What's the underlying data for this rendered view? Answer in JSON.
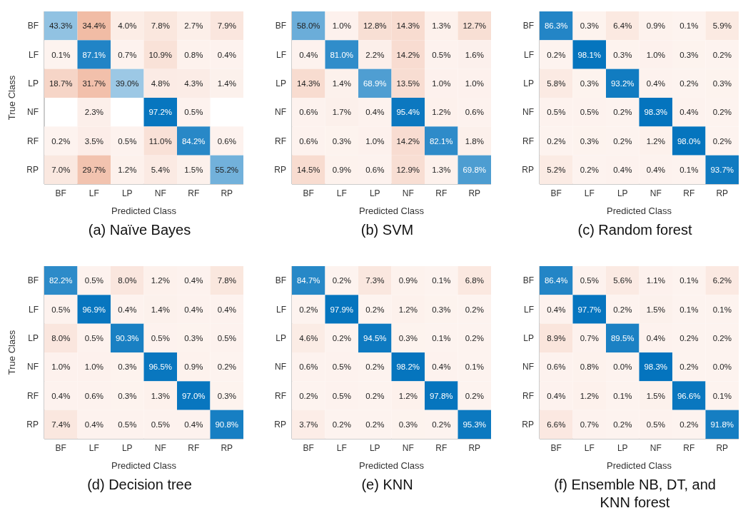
{
  "chart_data": [
    {
      "type": "heatmap",
      "title": "(a) Naïve Bayes",
      "xlabel": "Predicted Class",
      "ylabel": "True Class",
      "categories": [
        "BF",
        "LF",
        "LP",
        "NF",
        "RF",
        "RP"
      ],
      "y_categories": [
        "BF",
        "LF",
        "LP",
        "NF",
        "RF",
        "RP"
      ],
      "cells": [
        [
          43.3,
          34.4,
          4.0,
          7.8,
          2.7,
          7.9
        ],
        [
          0.1,
          87.1,
          0.7,
          10.9,
          0.8,
          0.4
        ],
        [
          18.7,
          31.7,
          39.0,
          4.8,
          4.3,
          1.4
        ],
        [
          null,
          2.3,
          null,
          97.2,
          0.5,
          null
        ],
        [
          0.2,
          3.5,
          0.5,
          11.0,
          84.2,
          0.6
        ],
        [
          7.0,
          29.7,
          1.2,
          5.4,
          1.5,
          55.2
        ]
      ],
      "cell_labels": [
        [
          "43.3%",
          "34.4%",
          "4.0%",
          "7.8%",
          "2.7%",
          "7.9%"
        ],
        [
          "0.1%",
          "87.1%",
          "0.7%",
          "10.9%",
          "0.8%",
          "0.4%"
        ],
        [
          "18.7%",
          "31.7%",
          "39.0%",
          "4.8%",
          "4.3%",
          "1.4%"
        ],
        [
          null,
          "2.3%",
          null,
          "97.2%",
          "0.5%",
          null
        ],
        [
          "0.2%",
          "3.5%",
          "0.5%",
          "11.0%",
          "84.2%",
          "0.6%"
        ],
        [
          "7.0%",
          "29.7%",
          "1.2%",
          "5.4%",
          "1.5%",
          "55.2%"
        ]
      ]
    },
    {
      "type": "heatmap",
      "title": "(b) SVM",
      "xlabel": "Predicted Class",
      "categories": [
        "BF",
        "LF",
        "LP",
        "NF",
        "RF",
        "RP"
      ],
      "y_categories": [
        "BF",
        "LF",
        "LP",
        "NF",
        "RF",
        "RP"
      ],
      "cells": [
        [
          58.0,
          1.0,
          12.8,
          14.3,
          1.3,
          12.7
        ],
        [
          0.4,
          81.0,
          2.2,
          14.2,
          0.5,
          1.6
        ],
        [
          14.3,
          1.4,
          68.9,
          13.5,
          1.0,
          1.0
        ],
        [
          0.6,
          1.7,
          0.4,
          95.4,
          1.2,
          0.6
        ],
        [
          0.6,
          0.3,
          1.0,
          14.2,
          82.1,
          1.8
        ],
        [
          14.5,
          0.9,
          0.6,
          12.9,
          1.3,
          69.8
        ]
      ],
      "cell_labels": [
        [
          "58.0%",
          "1.0%",
          "12.8%",
          "14.3%",
          "1.3%",
          "12.7%"
        ],
        [
          "0.4%",
          "81.0%",
          "2.2%",
          "14.2%",
          "0.5%",
          "1.6%"
        ],
        [
          "14.3%",
          "1.4%",
          "68.9%",
          "13.5%",
          "1.0%",
          "1.0%"
        ],
        [
          "0.6%",
          "1.7%",
          "0.4%",
          "95.4%",
          "1.2%",
          "0.6%"
        ],
        [
          "0.6%",
          "0.3%",
          "1.0%",
          "14.2%",
          "82.1%",
          "1.8%"
        ],
        [
          "14.5%",
          "0.9%",
          "0.6%",
          "12.9%",
          "1.3%",
          "69.8%"
        ]
      ]
    },
    {
      "type": "heatmap",
      "title": "(c) Random forest",
      "xlabel": "Predicted Class",
      "categories": [
        "BF",
        "LF",
        "LP",
        "NF",
        "RF",
        "RP"
      ],
      "y_categories": [
        "BF",
        "LF",
        "LP",
        "NF",
        "RF",
        "RP"
      ],
      "cells": [
        [
          86.3,
          0.3,
          6.4,
          0.9,
          0.1,
          5.9
        ],
        [
          0.2,
          98.1,
          0.3,
          1.0,
          0.3,
          0.2
        ],
        [
          5.8,
          0.3,
          93.2,
          0.4,
          0.2,
          0.3
        ],
        [
          0.5,
          0.5,
          0.2,
          98.3,
          0.4,
          0.2
        ],
        [
          0.2,
          0.3,
          0.2,
          1.2,
          98.0,
          0.2
        ],
        [
          5.2,
          0.2,
          0.4,
          0.4,
          0.1,
          93.7
        ]
      ],
      "cell_labels": [
        [
          "86.3%",
          "0.3%",
          "6.4%",
          "0.9%",
          "0.1%",
          "5.9%"
        ],
        [
          "0.2%",
          "98.1%",
          "0.3%",
          "1.0%",
          "0.3%",
          "0.2%"
        ],
        [
          "5.8%",
          "0.3%",
          "93.2%",
          "0.4%",
          "0.2%",
          "0.3%"
        ],
        [
          "0.5%",
          "0.5%",
          "0.2%",
          "98.3%",
          "0.4%",
          "0.2%"
        ],
        [
          "0.2%",
          "0.3%",
          "0.2%",
          "1.2%",
          "98.0%",
          "0.2%"
        ],
        [
          "5.2%",
          "0.2%",
          "0.4%",
          "0.4%",
          "0.1%",
          "93.7%"
        ]
      ]
    },
    {
      "type": "heatmap",
      "title": "(d) Decision tree",
      "xlabel": "Predicted Class",
      "ylabel": "True Class",
      "categories": [
        "BF",
        "LF",
        "LP",
        "NF",
        "RF",
        "RP"
      ],
      "y_categories": [
        "BF",
        "LF",
        "LP",
        "NF",
        "RF",
        "RP"
      ],
      "cells": [
        [
          82.2,
          0.5,
          8.0,
          1.2,
          0.4,
          7.8
        ],
        [
          0.5,
          96.9,
          0.4,
          1.4,
          0.4,
          0.4
        ],
        [
          8.0,
          0.5,
          90.3,
          0.5,
          0.3,
          0.5
        ],
        [
          1.0,
          1.0,
          0.3,
          96.5,
          0.9,
          0.2
        ],
        [
          0.4,
          0.6,
          0.3,
          1.3,
          97.0,
          0.3
        ],
        [
          7.4,
          0.4,
          0.5,
          0.5,
          0.4,
          90.8
        ]
      ],
      "cell_labels": [
        [
          "82.2%",
          "0.5%",
          "8.0%",
          "1.2%",
          "0.4%",
          "7.8%"
        ],
        [
          "0.5%",
          "96.9%",
          "0.4%",
          "1.4%",
          "0.4%",
          "0.4%"
        ],
        [
          "8.0%",
          "0.5%",
          "90.3%",
          "0.5%",
          "0.3%",
          "0.5%"
        ],
        [
          "1.0%",
          "1.0%",
          "0.3%",
          "96.5%",
          "0.9%",
          "0.2%"
        ],
        [
          "0.4%",
          "0.6%",
          "0.3%",
          "1.3%",
          "97.0%",
          "0.3%"
        ],
        [
          "7.4%",
          "0.4%",
          "0.5%",
          "0.5%",
          "0.4%",
          "90.8%"
        ]
      ]
    },
    {
      "type": "heatmap",
      "title": "(e) KNN",
      "xlabel": "Predicted Class",
      "categories": [
        "BF",
        "LF",
        "LP",
        "NF",
        "RF",
        "RP"
      ],
      "y_categories": [
        "BF",
        "LF",
        "LP",
        "NF",
        "RF",
        "RP"
      ],
      "cells": [
        [
          84.7,
          0.2,
          7.3,
          0.9,
          0.1,
          6.8
        ],
        [
          0.2,
          97.9,
          0.2,
          1.2,
          0.3,
          0.2
        ],
        [
          4.6,
          0.2,
          94.5,
          0.3,
          0.1,
          0.2
        ],
        [
          0.6,
          0.5,
          0.2,
          98.2,
          0.4,
          0.1
        ],
        [
          0.2,
          0.5,
          0.2,
          1.2,
          97.8,
          0.2
        ],
        [
          3.7,
          0.2,
          0.2,
          0.3,
          0.2,
          95.3
        ]
      ],
      "cell_labels": [
        [
          "84.7%",
          "0.2%",
          "7.3%",
          "0.9%",
          "0.1%",
          "6.8%"
        ],
        [
          "0.2%",
          "97.9%",
          "0.2%",
          "1.2%",
          "0.3%",
          "0.2%"
        ],
        [
          "4.6%",
          "0.2%",
          "94.5%",
          "0.3%",
          "0.1%",
          "0.2%"
        ],
        [
          "0.6%",
          "0.5%",
          "0.2%",
          "98.2%",
          "0.4%",
          "0.1%"
        ],
        [
          "0.2%",
          "0.5%",
          "0.2%",
          "1.2%",
          "97.8%",
          "0.2%"
        ],
        [
          "3.7%",
          "0.2%",
          "0.2%",
          "0.3%",
          "0.2%",
          "95.3%"
        ]
      ]
    },
    {
      "type": "heatmap",
      "title": "(f) Ensemble NB, DT, and KNN forest",
      "xlabel": "Predicted Class",
      "categories": [
        "BF",
        "LF",
        "LP",
        "NF",
        "RF",
        "RP"
      ],
      "y_categories": [
        "BF",
        "LF",
        "LP",
        "NF",
        "RF",
        "RP"
      ],
      "cells": [
        [
          86.4,
          0.5,
          5.6,
          1.1,
          0.1,
          6.2
        ],
        [
          0.4,
          97.7,
          0.2,
          1.5,
          0.1,
          0.1
        ],
        [
          8.9,
          0.7,
          89.5,
          0.4,
          0.2,
          0.2
        ],
        [
          0.6,
          0.8,
          0.0,
          98.3,
          0.2,
          0.0
        ],
        [
          0.4,
          1.2,
          0.1,
          1.5,
          96.6,
          0.1
        ],
        [
          6.6,
          0.7,
          0.2,
          0.5,
          0.2,
          91.8
        ]
      ],
      "cell_labels": [
        [
          "86.4%",
          "0.5%",
          "5.6%",
          "1.1%",
          "0.1%",
          "6.2%"
        ],
        [
          "0.4%",
          "97.7%",
          "0.2%",
          "1.5%",
          "0.1%",
          "0.1%"
        ],
        [
          "8.9%",
          "0.7%",
          "89.5%",
          "0.4%",
          "0.2%",
          "0.2%"
        ],
        [
          "0.6%",
          "0.8%",
          "0.0%",
          "98.3%",
          "0.2%",
          "0.0%"
        ],
        [
          "0.4%",
          "1.2%",
          "0.1%",
          "1.5%",
          "96.6%",
          "0.1%"
        ],
        [
          "6.6%",
          "0.7%",
          "0.2%",
          "0.5%",
          "0.2%",
          "91.8%"
        ]
      ]
    }
  ]
}
